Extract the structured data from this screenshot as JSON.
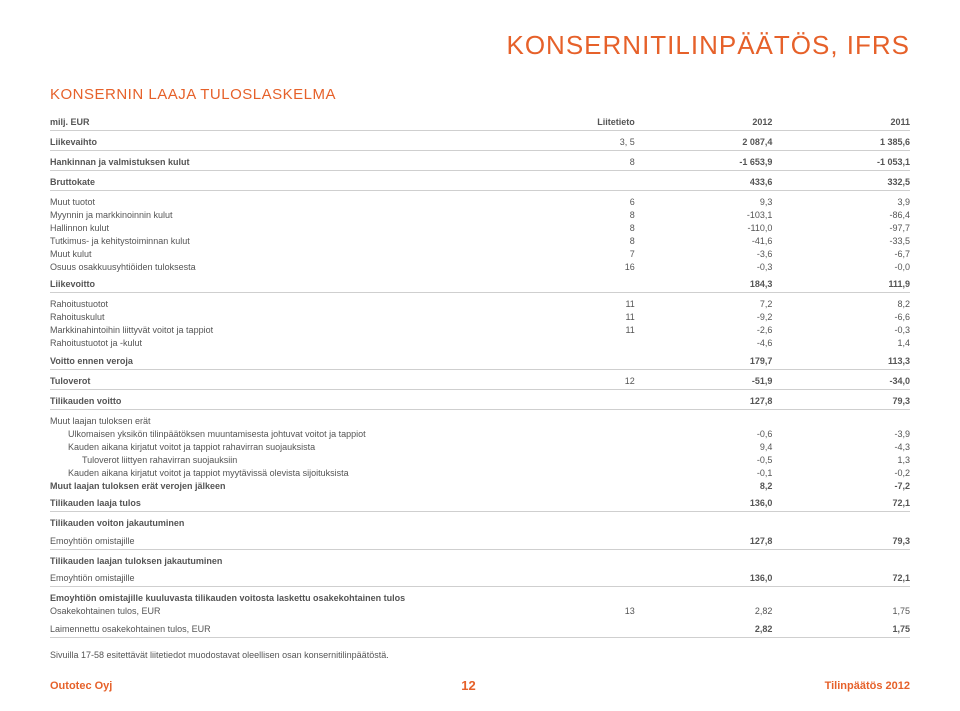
{
  "colors": {
    "accent": "#e6612a",
    "text": "#555555",
    "rule": "#cfcfcf",
    "bg": "#ffffff"
  },
  "typography": {
    "title_size_pt": 26,
    "subtitle_size_pt": 15,
    "body_size_pt": 9,
    "font_family": "Arial"
  },
  "header": {
    "title": "KONSERNITILINPÄÄTÖS, IFRS",
    "subtitle": "KONSERNIN LAAJA TULOSLASKELMA"
  },
  "table": {
    "columns": [
      "milj. EUR",
      "Liitetieto",
      "2012",
      "2011"
    ],
    "col_align": [
      "left",
      "right",
      "right",
      "right"
    ],
    "rows": [
      {
        "type": "section",
        "label": "Liikevaihto",
        "note": "3, 5",
        "y1": "2 087,4",
        "y2": "1 385,6"
      },
      {
        "type": "section",
        "label": "Hankinnan ja valmistuksen kulut",
        "note": "8",
        "y1": "-1 653,9",
        "y2": "-1 053,1"
      },
      {
        "type": "section",
        "label": "Bruttokate",
        "note": "",
        "y1": "433,6",
        "y2": "332,5"
      },
      {
        "type": "plain",
        "label": "Muut tuotot",
        "note": "6",
        "y1": "9,3",
        "y2": "3,9",
        "padtop": true
      },
      {
        "type": "plain",
        "label": "Myynnin ja markkinoinnin kulut",
        "note": "8",
        "y1": "-103,1",
        "y2": "-86,4"
      },
      {
        "type": "plain",
        "label": "Hallinnon kulut",
        "note": "8",
        "y1": "-110,0",
        "y2": "-97,7"
      },
      {
        "type": "plain",
        "label": "Tutkimus- ja kehitystoiminnan kulut",
        "note": "8",
        "y1": "-41,6",
        "y2": "-33,5"
      },
      {
        "type": "plain",
        "label": "Muut kulut",
        "note": "7",
        "y1": "-3,6",
        "y2": "-6,7"
      },
      {
        "type": "plain",
        "label": "Osuus osakkuusyhtiöiden tuloksesta",
        "note": "16",
        "y1": "-0,3",
        "y2": "-0,0"
      },
      {
        "type": "section",
        "label": "Liikevoitto",
        "note": "",
        "y1": "184,3",
        "y2": "111,9"
      },
      {
        "type": "plain",
        "label": "Rahoitustuotot",
        "note": "11",
        "y1": "7,2",
        "y2": "8,2",
        "padtop": true
      },
      {
        "type": "plain",
        "label": "Rahoituskulut",
        "note": "11",
        "y1": "-9,2",
        "y2": "-6,6"
      },
      {
        "type": "plain",
        "label": "Markkinahintoihin liittyvät voitot ja tappiot",
        "note": "11",
        "y1": "-2,6",
        "y2": "-0,3"
      },
      {
        "type": "plain",
        "label": "Rahoitustuotot ja -kulut",
        "note": "",
        "y1": "-4,6",
        "y2": "1,4"
      },
      {
        "type": "section",
        "label": "Voitto ennen veroja",
        "note": "",
        "y1": "179,7",
        "y2": "113,3"
      },
      {
        "type": "section",
        "label": "Tuloverot",
        "note": "12",
        "y1": "-51,9",
        "y2": "-34,0"
      },
      {
        "type": "section",
        "label": "Tilikauden voitto",
        "note": "",
        "y1": "127,8",
        "y2": "79,3"
      },
      {
        "type": "plain",
        "label": "Muut laajan tuloksen erät",
        "note": "",
        "y1": "",
        "y2": "",
        "padtop": true
      },
      {
        "type": "plain",
        "label": "Ulkomaisen yksikön tilinpäätöksen muuntamisesta johtuvat voitot ja tappiot",
        "note": "",
        "y1": "-0,6",
        "y2": "-3,9",
        "indent": true
      },
      {
        "type": "plain",
        "label": "Kauden aikana kirjatut voitot ja tappiot rahavirran suojauksista",
        "note": "",
        "y1": "9,4",
        "y2": "-4,3",
        "indent": true
      },
      {
        "type": "plain",
        "label": "Tuloverot liittyen rahavirran suojauksiin",
        "note": "",
        "y1": "-0,5",
        "y2": "1,3",
        "indent": true,
        "indent2": true
      },
      {
        "type": "plain",
        "label": "Kauden aikana kirjatut voitot ja tappiot myytävissä olevista sijoituksista",
        "note": "",
        "y1": "-0,1",
        "y2": "-0,2",
        "indent": true
      },
      {
        "type": "plain",
        "label": "Muut laajan tuloksen erät verojen jälkeen",
        "note": "",
        "y1": "8,2",
        "y2": "-7,2",
        "bold": true
      },
      {
        "type": "section",
        "label": "Tilikauden laaja tulos",
        "note": "",
        "y1": "136,0",
        "y2": "72,1"
      },
      {
        "type": "bold-noline",
        "label": "Tilikauden voiton jakautuminen",
        "note": "",
        "y1": "",
        "y2": ""
      },
      {
        "type": "section",
        "label": "Emoyhtiön omistajille",
        "note": "",
        "y1": "127,8",
        "y2": "79,3",
        "labelplain": true
      },
      {
        "type": "bold-noline",
        "label": "Tilikauden laajan tuloksen jakautuminen",
        "note": "",
        "y1": "",
        "y2": ""
      },
      {
        "type": "section",
        "label": "Emoyhtiön omistajille",
        "note": "",
        "y1": "136,0",
        "y2": "72,1",
        "labelplain": true
      },
      {
        "type": "bold-noline",
        "label": "Emoyhtiön omistajille kuuluvasta tilikauden voitosta laskettu osakekohtainen tulos",
        "note": "",
        "y1": "",
        "y2": ""
      },
      {
        "type": "plain",
        "label": "Osakekohtainen tulos, EUR",
        "note": "13",
        "y1": "2,82",
        "y2": "1,75"
      },
      {
        "type": "section",
        "label": "Laimennettu osakekohtainen tulos, EUR",
        "note": "",
        "y1": "2,82",
        "y2": "1,75",
        "labelplain": true
      }
    ]
  },
  "footnote": "Sivuilla 17-58 esitettävät liitetiedot muodostavat oleellisen osan konsernitilinpäätöstä.",
  "footer": {
    "company": "Outotec Oyj",
    "page": "12",
    "docname": "Tilinpäätös 2012"
  }
}
